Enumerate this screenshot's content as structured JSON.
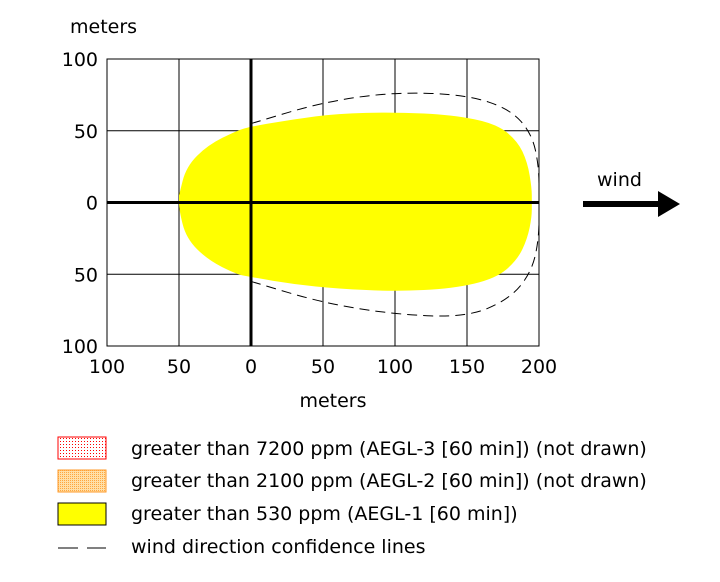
{
  "chart_data": {
    "type": "area",
    "y_axis_label": "meters",
    "x_axis_label": "meters",
    "x_ticks": [
      "100",
      "50",
      "0",
      "50",
      "100",
      "150",
      "200"
    ],
    "y_ticks": [
      "100",
      "50",
      "0",
      "50",
      "100"
    ],
    "xlim": [
      -100,
      200
    ],
    "ylim": [
      -100,
      100
    ],
    "grid": true,
    "wind_label": "wind",
    "threat_zone_aegl1": {
      "color": "#ffff00",
      "upper": [
        [
          -50,
          5
        ],
        [
          -45,
          25
        ],
        [
          -30,
          40
        ],
        [
          -10,
          50
        ],
        [
          0,
          53
        ],
        [
          30,
          58
        ],
        [
          60,
          62
        ],
        [
          100,
          63
        ],
        [
          140,
          61
        ],
        [
          170,
          55
        ],
        [
          185,
          43
        ],
        [
          192,
          28
        ],
        [
          195,
          10
        ],
        [
          195,
          0
        ]
      ],
      "lower": [
        [
          -50,
          -5
        ],
        [
          -45,
          -25
        ],
        [
          -30,
          -40
        ],
        [
          -10,
          -50
        ],
        [
          0,
          -52
        ],
        [
          30,
          -57
        ],
        [
          60,
          -60
        ],
        [
          100,
          -62
        ],
        [
          140,
          -60
        ],
        [
          170,
          -53
        ],
        [
          185,
          -40
        ],
        [
          192,
          -25
        ],
        [
          195,
          -10
        ],
        [
          195,
          0
        ]
      ]
    },
    "confidence_lines": {
      "upper": [
        [
          0,
          55
        ],
        [
          50,
          70
        ],
        [
          100,
          77
        ],
        [
          150,
          75
        ],
        [
          180,
          65
        ],
        [
          195,
          48
        ],
        [
          200,
          25
        ],
        [
          200,
          0
        ]
      ],
      "lower": [
        [
          0,
          -55
        ],
        [
          50,
          -70
        ],
        [
          100,
          -78
        ],
        [
          150,
          -80
        ],
        [
          180,
          -67
        ],
        [
          195,
          -48
        ],
        [
          200,
          -25
        ],
        [
          200,
          0
        ]
      ]
    }
  },
  "legend": [
    {
      "label": "greater than 7200 ppm (AEGL-3 [60 min]) (not drawn)",
      "swatch": "dotted-red"
    },
    {
      "label": "greater than 2100 ppm (AEGL-2 [60 min]) (not drawn)",
      "swatch": "dotted-orange"
    },
    {
      "label": "greater than 530 ppm (AEGL-1 [60 min])",
      "swatch": "yellow"
    },
    {
      "label": "wind direction confidence lines",
      "swatch": "dashed"
    }
  ]
}
